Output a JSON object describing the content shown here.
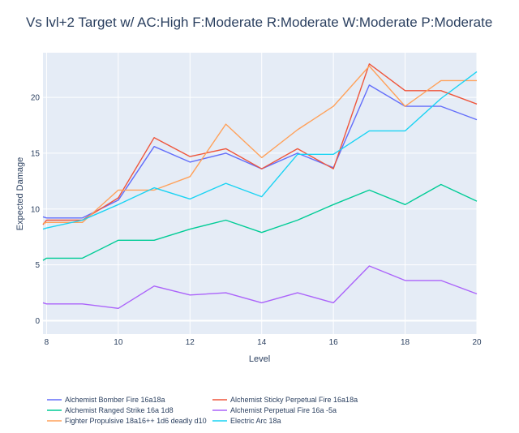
{
  "chart_data": {
    "type": "line",
    "title": "Vs lvl+2 Target w/ AC:High F:Moderate R:Moderate W:Moderate P:Moderate",
    "xlabel": "Level",
    "ylabel": "Expected Damage",
    "xlim": [
      7.9,
      20
    ],
    "ylim": [
      -1.2,
      24
    ],
    "xticks": [
      8,
      10,
      12,
      14,
      16,
      18,
      20
    ],
    "yticks": [
      0,
      5,
      10,
      15,
      20
    ],
    "grid": true,
    "legend_position": "bottom",
    "colors": {
      "background": "#e5ecf6",
      "grid": "#ffffff",
      "text": "#2a3f5f"
    },
    "series": [
      {
        "name": "Alchemist Bomber Fire 16a18a",
        "color": "#636efa",
        "x": [
          7.9,
          8,
          9,
          10,
          11,
          12,
          13,
          14,
          15,
          16,
          17,
          18,
          19,
          20
        ],
        "y": [
          9.3,
          9.2,
          9.2,
          10.8,
          15.6,
          14.2,
          15.0,
          13.6,
          15.0,
          13.7,
          21.1,
          19.2,
          19.2,
          18.0
        ]
      },
      {
        "name": "Alchemist Sticky Perpetual Fire 16a18a",
        "color": "#ef553b",
        "x": [
          7.9,
          8,
          9,
          10,
          11,
          12,
          13,
          14,
          15,
          16,
          17,
          18,
          19,
          20
        ],
        "y": [
          8.6,
          9.0,
          9.0,
          11.0,
          16.4,
          14.7,
          15.4,
          13.6,
          15.4,
          13.6,
          23.0,
          20.6,
          20.6,
          19.4
        ]
      },
      {
        "name": "Alchemist Ranged Strike 16a 1d8",
        "color": "#00cc96",
        "x": [
          7.9,
          8,
          9,
          10,
          11,
          12,
          13,
          14,
          15,
          16,
          17,
          18,
          19,
          20
        ],
        "y": [
          5.4,
          5.6,
          5.6,
          7.2,
          7.2,
          8.2,
          9.0,
          7.9,
          9.0,
          10.4,
          11.7,
          10.4,
          12.2,
          10.7
        ]
      },
      {
        "name": "Alchemist Perpetual Fire 16a -5a",
        "color": "#ab63fa",
        "x": [
          7.9,
          8,
          9,
          10,
          11,
          12,
          13,
          14,
          15,
          16,
          17,
          18,
          19,
          20
        ],
        "y": [
          1.6,
          1.5,
          1.5,
          1.1,
          3.1,
          2.3,
          2.5,
          1.6,
          2.5,
          1.6,
          4.9,
          3.6,
          3.6,
          2.4
        ]
      },
      {
        "name": "Fighter Propulsive 18a16++ 1d6 deadly d10",
        "color": "#ffa15a",
        "x": [
          7.9,
          8,
          9,
          10,
          11,
          12,
          13,
          14,
          15,
          16,
          17,
          18,
          19,
          20
        ],
        "y": [
          8.7,
          8.8,
          8.8,
          11.7,
          11.7,
          12.9,
          17.6,
          14.6,
          17.1,
          19.2,
          22.8,
          19.2,
          21.5,
          21.5
        ]
      },
      {
        "name": "Electric Arc 18a",
        "color": "#19d3f3",
        "x": [
          7.9,
          8,
          9,
          10,
          11,
          12,
          13,
          14,
          15,
          16,
          17,
          18,
          19,
          20
        ],
        "y": [
          8.2,
          8.3,
          9.0,
          10.4,
          11.9,
          10.9,
          12.3,
          11.1,
          14.9,
          14.9,
          17.0,
          17.0,
          19.9,
          22.3
        ]
      }
    ]
  }
}
